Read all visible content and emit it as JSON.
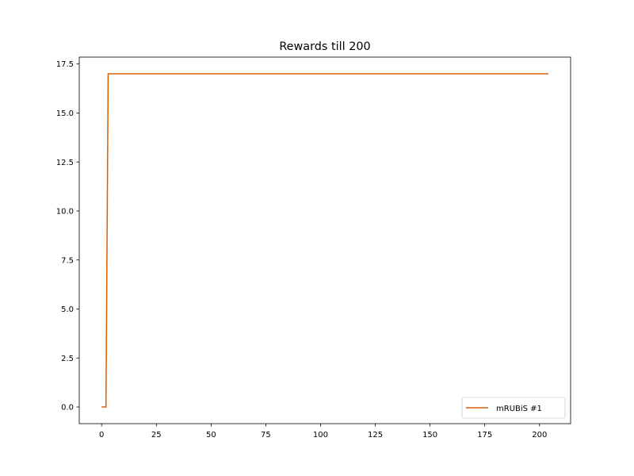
{
  "chart_data": {
    "type": "line",
    "title": "Rewards till 200",
    "xlabel": "",
    "ylabel": "",
    "xlim": [
      -10.2,
      214.2
    ],
    "ylim": [
      -0.85,
      17.85
    ],
    "xticks": [
      0,
      25,
      50,
      75,
      100,
      125,
      150,
      175,
      200
    ],
    "xtick_labels": [
      "0",
      "25",
      "50",
      "75",
      "100",
      "125",
      "150",
      "175",
      "200"
    ],
    "yticks": [
      0.0,
      2.5,
      5.0,
      7.5,
      10.0,
      12.5,
      15.0,
      17.5
    ],
    "ytick_labels": [
      "0.0",
      "2.5",
      "5.0",
      "7.5",
      "10.0",
      "12.5",
      "15.0",
      "17.5"
    ],
    "grid": false,
    "legend_position": "bottom-right",
    "series": [
      {
        "name": "mRUBiS #1",
        "color": "#d95f02",
        "x": [
          0,
          1,
          2,
          3,
          204
        ],
        "y": [
          0,
          0,
          0,
          17,
          17
        ]
      }
    ]
  }
}
